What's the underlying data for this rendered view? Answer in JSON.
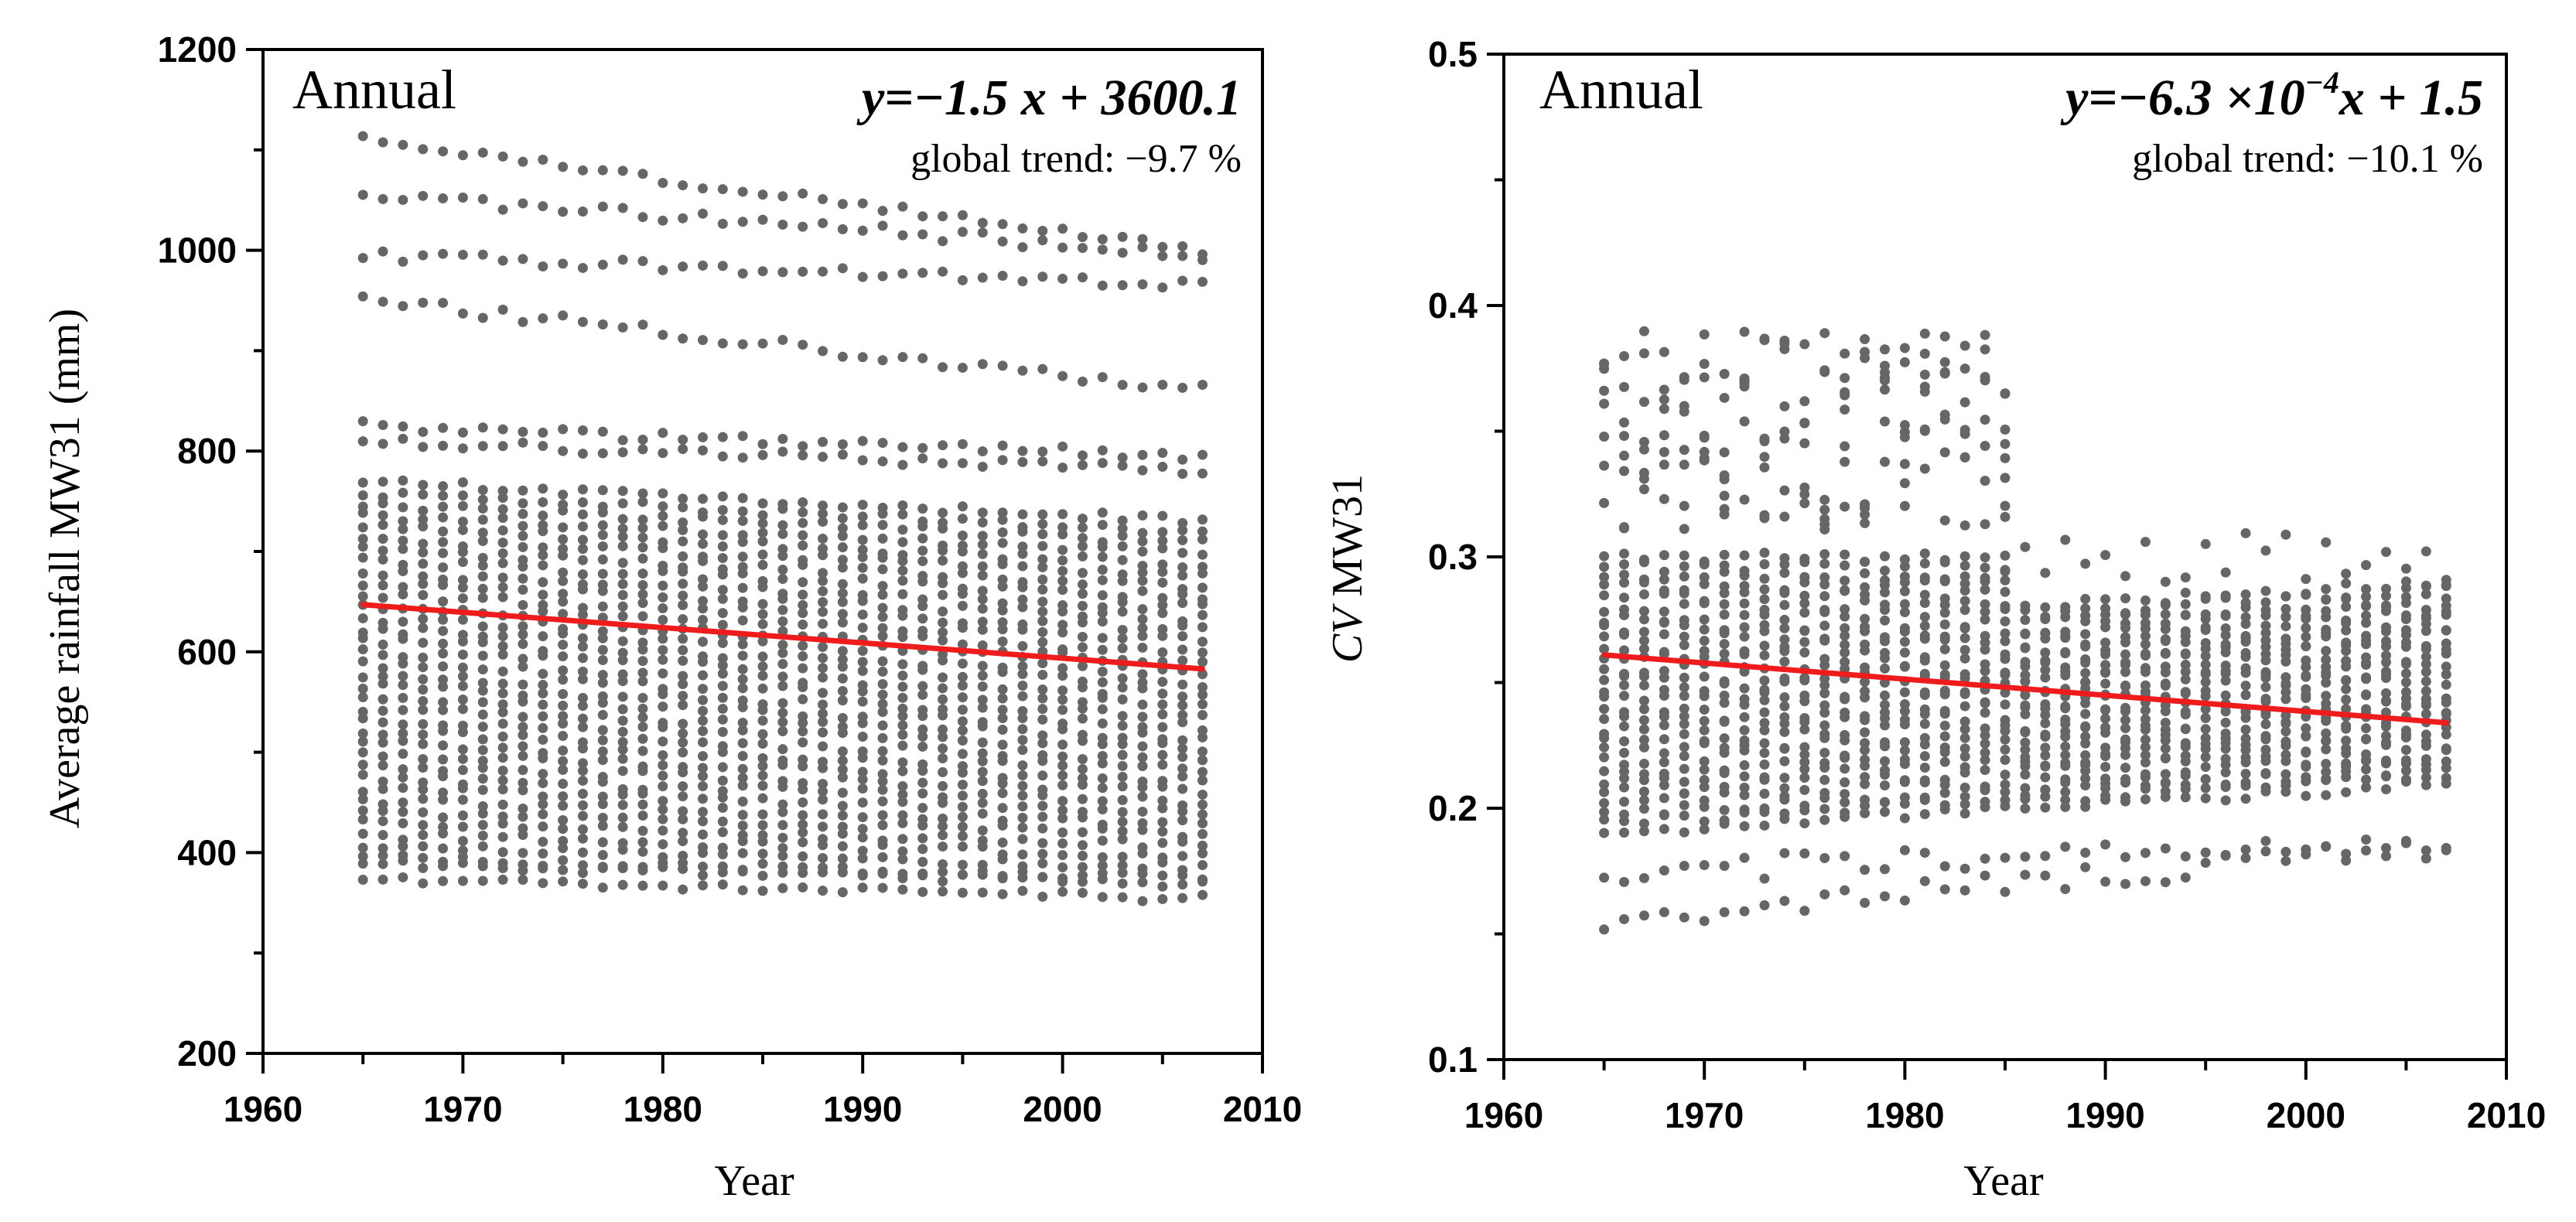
{
  "chart_data": [
    {
      "type": "scatter",
      "panel_label": "Annual",
      "equation_html": "y=−1.5 x + 3600.1",
      "trend_text": "global trend: −9.7 %",
      "xlabel": "Year",
      "ylabel": "Average rainfall MW31 (mm)",
      "xlim": [
        1960,
        2010
      ],
      "ylim": [
        200,
        1200
      ],
      "x_ticks": [
        "1960",
        "1970",
        "1980",
        "1990",
        "2000",
        "2010"
      ],
      "y_ticks": [
        "200",
        "400",
        "600",
        "800",
        "1000",
        "1200"
      ],
      "x_range_data": [
        1965,
        2007
      ],
      "trend_line": {
        "x": [
          1965,
          2007
        ],
        "y": [
          647,
          583
        ]
      },
      "point_color": "#666666",
      "trend_color": "#ee1c1c"
    },
    {
      "type": "scatter",
      "panel_label": "Annual",
      "equation_prefix": "y=−6.3 ×10",
      "equation_sup": "−4",
      "equation_suffix": "x + 1.5",
      "trend_text": "global trend: −10.1 %",
      "xlabel": "Year",
      "ylabel_italic": "CV",
      "ylabel_rest": " MW31",
      "xlim": [
        1960,
        2010
      ],
      "ylim": [
        0.1,
        0.5
      ],
      "x_ticks": [
        "1960",
        "1970",
        "1980",
        "1990",
        "2000",
        "2010"
      ],
      "y_ticks": [
        "0.1",
        "0.2",
        "0.3",
        "0.4",
        "0.5"
      ],
      "x_range_data": [
        1965,
        2007
      ],
      "trend_line": {
        "x": [
          1965,
          2007
        ],
        "y": [
          0.261,
          0.234
        ]
      },
      "point_color": "#666666",
      "trend_color": "#ee1c1c"
    }
  ]
}
